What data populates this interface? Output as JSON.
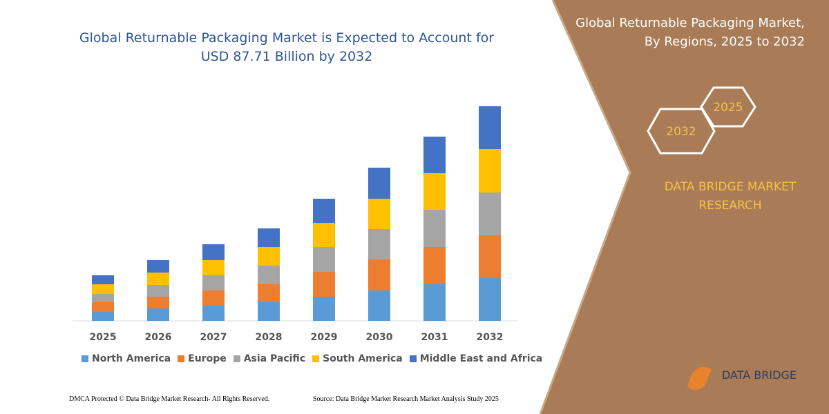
{
  "chart_data": {
    "type": "stacked_bar",
    "title": "Global Returnable Packaging Market is Expected to Account for USD 87.71 Billion by 2032",
    "categories": [
      "2025",
      "2026",
      "2027",
      "2028",
      "2029",
      "2030",
      "2031",
      "2032"
    ],
    "series": [
      {
        "name": "North America",
        "color": "#5b9bd5",
        "values": [
          13,
          18,
          22,
          27,
          35,
          44,
          53,
          62
        ]
      },
      {
        "name": "Europe",
        "color": "#ed7d31",
        "values": [
          14,
          17,
          22,
          26,
          36,
          45,
          54,
          62
        ]
      },
      {
        "name": "Asia Pacific",
        "color": "#a5a5a5",
        "values": [
          12,
          17,
          22,
          27,
          36,
          44,
          54,
          62
        ]
      },
      {
        "name": "South America",
        "color": "#ffc000",
        "values": [
          14,
          18,
          22,
          27,
          35,
          44,
          53,
          63
        ]
      },
      {
        "name": "Middle East and Africa",
        "color": "#4472c4",
        "values": [
          13,
          18,
          23,
          27,
          35,
          45,
          53,
          62
        ]
      }
    ]
  },
  "panel": {
    "title": "Global Returnable Packaging Market, By Regions, 2025 to 2032",
    "hexagons": [
      "2032",
      "2025"
    ],
    "brand": "DATA BRIDGE MARKET RESEARCH",
    "logo": "DATA BRIDGE"
  },
  "footer": {
    "left": "DMCA Protected © Data Bridge Market Research- All Rights Reserved.",
    "right": "Source: Data Bridge Market Research Market Analysis Study 2025"
  }
}
